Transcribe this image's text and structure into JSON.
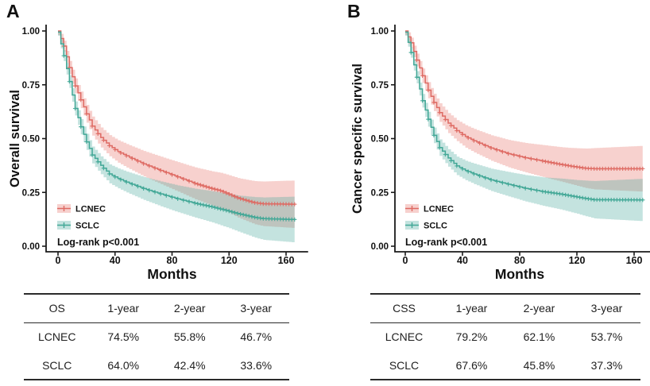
{
  "page": {
    "background": "#ffffff"
  },
  "colors": {
    "lcnec_line": "#DE6A63",
    "lcnec_ribbon": "rgba(231,111,104,0.32)",
    "sclc_line": "#41A796",
    "sclc_ribbon": "rgba(70,167,155,0.32)",
    "axis": "#1a1a1a",
    "text": "#111111"
  },
  "panels": [
    {
      "letter": "A",
      "y_axis_title": "Overall survival",
      "x_axis_title": "Months",
      "y_tick_labels": [
        "1.00",
        "0.75",
        "0.50",
        "0.25",
        "0.00"
      ],
      "x_tick_labels": [
        "0",
        "40",
        "80",
        "120",
        "160"
      ],
      "legend": {
        "items": [
          "LCNEC",
          "SCLC"
        ],
        "logrank_text": "Log-rank p<0.001"
      },
      "table": {
        "headers": [
          "OS",
          "1-year",
          "2-year",
          "3-year"
        ],
        "rows": [
          [
            "LCNEC",
            "74.5%",
            "55.8%",
            "46.7%"
          ],
          [
            "SCLC",
            "64.0%",
            "42.4%",
            "33.6%"
          ]
        ]
      }
    },
    {
      "letter": "B",
      "y_axis_title": "Cancer specific survival",
      "x_axis_title": "Months",
      "y_tick_labels": [
        "1.00",
        "0.75",
        "0.50",
        "0.25",
        "0.00"
      ],
      "x_tick_labels": [
        "0",
        "40",
        "80",
        "120",
        "160"
      ],
      "legend": {
        "items": [
          "LCNEC",
          "SCLC"
        ],
        "logrank_text": "Log-rank p<0.001"
      },
      "table": {
        "headers": [
          "CSS",
          "1-year",
          "2-year",
          "3-year"
        ],
        "rows": [
          [
            "LCNEC",
            "79.2%",
            "62.1%",
            "53.7%"
          ],
          [
            "SCLC",
            "67.6%",
            "45.8%",
            "37.3%"
          ]
        ]
      }
    }
  ],
  "chart_data": [
    {
      "type": "line",
      "subtype": "kaplan-meier-step",
      "panel": "A",
      "title": "Overall survival",
      "xlabel": "Months",
      "ylabel": "Overall survival",
      "xlim": [
        0,
        166
      ],
      "ylim": [
        0,
        1
      ],
      "x_ticks": [
        0,
        40,
        80,
        120,
        160
      ],
      "y_ticks": [
        0,
        0.25,
        0.5,
        0.75,
        1.0
      ],
      "grid": false,
      "legend_position": "bottom-left",
      "annotation": "Log-rank p<0.001",
      "series": [
        {
          "name": "LCNEC",
          "points_month_surv_ci": [
            [
              0,
              1.0,
              0.006
            ],
            [
              4,
              0.93,
              0.012
            ],
            [
              8,
              0.83,
              0.017
            ],
            [
              12,
              0.745,
              0.02
            ],
            [
              16,
              0.68,
              0.023
            ],
            [
              20,
              0.615,
              0.025
            ],
            [
              24,
              0.558,
              0.027
            ],
            [
              30,
              0.505,
              0.028
            ],
            [
              36,
              0.467,
              0.029
            ],
            [
              42,
              0.44,
              0.031
            ],
            [
              48,
              0.42,
              0.032
            ],
            [
              60,
              0.383,
              0.034
            ],
            [
              72,
              0.352,
              0.036
            ],
            [
              84,
              0.322,
              0.038
            ],
            [
              96,
              0.292,
              0.041
            ],
            [
              108,
              0.268,
              0.044
            ],
            [
              114,
              0.258,
              0.046
            ],
            [
              120,
              0.242,
              0.049
            ],
            [
              126,
              0.225,
              0.052
            ],
            [
              132,
              0.213,
              0.055
            ],
            [
              138,
              0.202,
              0.058
            ],
            [
              144,
              0.197,
              0.06
            ],
            [
              166,
              0.195,
              0.062
            ]
          ]
        },
        {
          "name": "SCLC",
          "points_month_surv_ci": [
            [
              0,
              0.995,
              0.005
            ],
            [
              4,
              0.885,
              0.012
            ],
            [
              8,
              0.765,
              0.016
            ],
            [
              12,
              0.64,
              0.018
            ],
            [
              16,
              0.555,
              0.02
            ],
            [
              20,
              0.485,
              0.021
            ],
            [
              24,
              0.424,
              0.022
            ],
            [
              30,
              0.376,
              0.023
            ],
            [
              36,
              0.336,
              0.024
            ],
            [
              42,
              0.315,
              0.025
            ],
            [
              48,
              0.298,
              0.026
            ],
            [
              60,
              0.268,
              0.028
            ],
            [
              72,
              0.243,
              0.03
            ],
            [
              84,
              0.22,
              0.032
            ],
            [
              96,
              0.2,
              0.034
            ],
            [
              108,
              0.183,
              0.037
            ],
            [
              120,
              0.163,
              0.041
            ],
            [
              126,
              0.152,
              0.044
            ],
            [
              132,
              0.143,
              0.048
            ],
            [
              138,
              0.134,
              0.052
            ],
            [
              144,
              0.128,
              0.055
            ],
            [
              166,
              0.124,
              0.058
            ]
          ]
        }
      ]
    },
    {
      "type": "line",
      "subtype": "kaplan-meier-step",
      "panel": "B",
      "title": "Cancer specific survival",
      "xlabel": "Months",
      "ylabel": "Cancer specific survival",
      "xlim": [
        0,
        166
      ],
      "ylim": [
        0,
        1
      ],
      "x_ticks": [
        0,
        40,
        80,
        120,
        160
      ],
      "y_ticks": [
        0,
        0.25,
        0.5,
        0.75,
        1.0
      ],
      "grid": false,
      "legend_position": "bottom-left",
      "annotation": "Log-rank p<0.001",
      "series": [
        {
          "name": "LCNEC",
          "points_month_surv_ci": [
            [
              0,
              1.0,
              0.006
            ],
            [
              4,
              0.945,
              0.011
            ],
            [
              8,
              0.865,
              0.016
            ],
            [
              12,
              0.792,
              0.019
            ],
            [
              16,
              0.725,
              0.022
            ],
            [
              20,
              0.668,
              0.024
            ],
            [
              24,
              0.621,
              0.026
            ],
            [
              30,
              0.572,
              0.028
            ],
            [
              36,
              0.537,
              0.029
            ],
            [
              42,
              0.51,
              0.031
            ],
            [
              48,
              0.49,
              0.032
            ],
            [
              60,
              0.456,
              0.034
            ],
            [
              72,
              0.43,
              0.036
            ],
            [
              84,
              0.411,
              0.038
            ],
            [
              96,
              0.396,
              0.041
            ],
            [
              108,
              0.381,
              0.044
            ],
            [
              114,
              0.374,
              0.046
            ],
            [
              120,
              0.368,
              0.049
            ],
            [
              126,
              0.362,
              0.052
            ],
            [
              132,
              0.36,
              0.055
            ],
            [
              166,
              0.36,
              0.058
            ]
          ]
        },
        {
          "name": "SCLC",
          "points_month_surv_ci": [
            [
              0,
              0.995,
              0.005
            ],
            [
              4,
              0.9,
              0.011
            ],
            [
              8,
              0.785,
              0.015
            ],
            [
              12,
              0.676,
              0.017
            ],
            [
              16,
              0.59,
              0.019
            ],
            [
              20,
              0.515,
              0.02
            ],
            [
              24,
              0.458,
              0.021
            ],
            [
              30,
              0.41,
              0.022
            ],
            [
              36,
              0.373,
              0.023
            ],
            [
              42,
              0.352,
              0.024
            ],
            [
              48,
              0.336,
              0.025
            ],
            [
              60,
              0.308,
              0.027
            ],
            [
              72,
              0.288,
              0.029
            ],
            [
              84,
              0.269,
              0.031
            ],
            [
              96,
              0.254,
              0.033
            ],
            [
              108,
              0.243,
              0.036
            ],
            [
              120,
              0.229,
              0.04
            ],
            [
              126,
              0.222,
              0.043
            ],
            [
              132,
              0.216,
              0.046
            ],
            [
              166,
              0.215,
              0.05
            ]
          ]
        }
      ]
    }
  ]
}
